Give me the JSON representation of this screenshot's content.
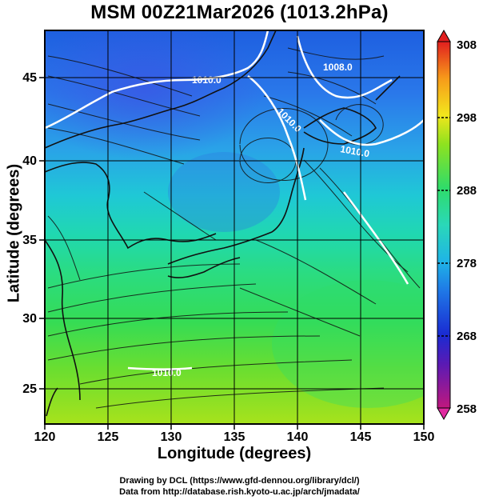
{
  "title": "MSM 00Z21Mar2026 (1013.2hPa)",
  "map": {
    "xlabel": "Longitude (degrees)",
    "ylabel": "Latitude  (degrees)",
    "lon_range": [
      120,
      150
    ],
    "lat_range": [
      23,
      48
    ],
    "lon_ticks": [
      "120",
      "125",
      "130",
      "135",
      "140",
      "145",
      "150"
    ],
    "lat_ticks": [
      "25",
      "30",
      "35",
      "40",
      "45"
    ],
    "isobar_labels": [
      "1008.0",
      "1010.0",
      "1010.0",
      "1010.0",
      "1010.0"
    ],
    "field": "temperature with surface streamlines"
  },
  "colorbar": {
    "ticks": [
      "258",
      "268",
      "278",
      "288",
      "298",
      "308"
    ],
    "range": [
      258,
      308
    ],
    "colors": [
      "#c0187e",
      "#1a2bd2",
      "#1fa7e6",
      "#2fdc8a",
      "#9be61f",
      "#f4e61c",
      "#f79a1a",
      "#e11f1f"
    ]
  },
  "credits": {
    "line1": "Drawing by DCL (https://www.gfd-dennou.org/library/dcl/)",
    "line2": "Data from http://database.rish.kyoto-u.ac.jp/arch/jmadata/"
  }
}
